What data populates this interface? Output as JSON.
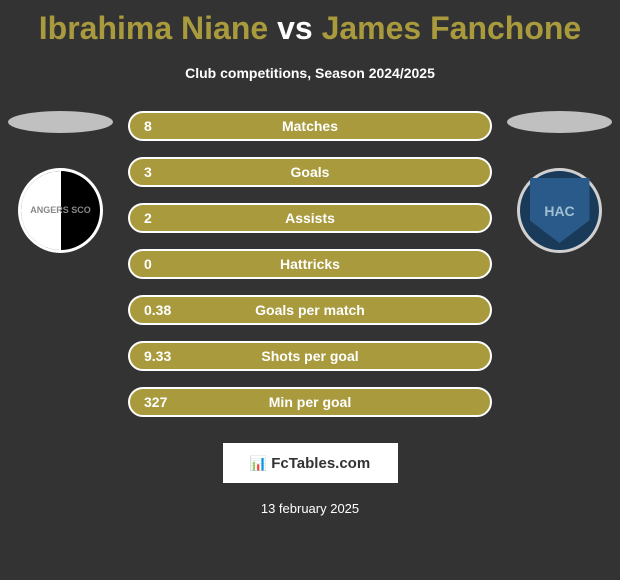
{
  "title": {
    "player1": "Ibrahima Niane",
    "vs": "vs",
    "player2": "James Fanchone"
  },
  "subtitle": "Club competitions, Season 2024/2025",
  "clubs": {
    "left": {
      "name": "ANGERS SCO"
    },
    "right": {
      "name": "HAC"
    }
  },
  "stats": [
    {
      "value": "8",
      "label": "Matches"
    },
    {
      "value": "3",
      "label": "Goals"
    },
    {
      "value": "2",
      "label": "Assists"
    },
    {
      "value": "0",
      "label": "Hattricks"
    },
    {
      "value": "0.38",
      "label": "Goals per match"
    },
    {
      "value": "9.33",
      "label": "Shots per goal"
    },
    {
      "value": "327",
      "label": "Min per goal"
    }
  ],
  "footer": {
    "brand": "FcTables.com",
    "date": "13 february 2025"
  },
  "colors": {
    "background": "#333333",
    "accent": "#a89a3d",
    "text_light": "#ffffff",
    "oval": "#c0c0c0",
    "club_left_bg": "#000000",
    "club_right_bg": "#1a3a5a"
  }
}
